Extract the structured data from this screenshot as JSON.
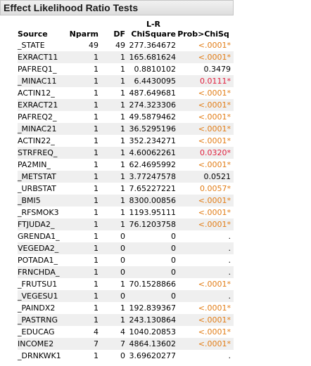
{
  "title": "Effect Likelihood Ratio Tests",
  "columns": {
    "source": "Source",
    "nparm": "Nparm",
    "df": "DF",
    "chisq_top": "L-R",
    "chisq_bottom": "ChiSquare",
    "prob": "Prob>ChiSq"
  },
  "rows": [
    {
      "source": "_STATE",
      "nparm": "49",
      "df": "49",
      "chisq": "277.364672",
      "prob": "<.0001*",
      "sig": "orange"
    },
    {
      "source": "EXRACT11",
      "nparm": "1",
      "df": "1",
      "chisq": "165.681624",
      "prob": "<.0001*",
      "sig": "orange"
    },
    {
      "source": "PAFREQ1_",
      "nparm": "1",
      "df": "1",
      "chisq": "0.8810102",
      "prob": "0.3479",
      "sig": "none"
    },
    {
      "source": "_MINAC11",
      "nparm": "1",
      "df": "1",
      "chisq": "6.4430095",
      "prob": "0.0111*",
      "sig": "red"
    },
    {
      "source": "ACTIN12_",
      "nparm": "1",
      "df": "1",
      "chisq": "487.649681",
      "prob": "<.0001*",
      "sig": "orange"
    },
    {
      "source": "EXRACT21",
      "nparm": "1",
      "df": "1",
      "chisq": "274.323306",
      "prob": "<.0001*",
      "sig": "orange"
    },
    {
      "source": "PAFREQ2_",
      "nparm": "1",
      "df": "1",
      "chisq": "49.5879462",
      "prob": "<.0001*",
      "sig": "orange"
    },
    {
      "source": "_MINAC21",
      "nparm": "1",
      "df": "1",
      "chisq": "36.5295196",
      "prob": "<.0001*",
      "sig": "orange"
    },
    {
      "source": "ACTIN22_",
      "nparm": "1",
      "df": "1",
      "chisq": "352.234271",
      "prob": "<.0001*",
      "sig": "orange"
    },
    {
      "source": "STRFREQ_",
      "nparm": "1",
      "df": "1",
      "chisq": "4.60062261",
      "prob": "0.0320*",
      "sig": "red"
    },
    {
      "source": "PA2MIN_",
      "nparm": "1",
      "df": "1",
      "chisq": "62.4695992",
      "prob": "<.0001*",
      "sig": "orange"
    },
    {
      "source": "_METSTAT",
      "nparm": "1",
      "df": "1",
      "chisq": "3.77247578",
      "prob": "0.0521",
      "sig": "none"
    },
    {
      "source": "_URBSTAT",
      "nparm": "1",
      "df": "1",
      "chisq": "7.65227221",
      "prob": "0.0057*",
      "sig": "orange"
    },
    {
      "source": "_BMI5",
      "nparm": "1",
      "df": "1",
      "chisq": "8300.00856",
      "prob": "<.0001*",
      "sig": "orange"
    },
    {
      "source": "_RFSMOK3",
      "nparm": "1",
      "df": "1",
      "chisq": "1193.95111",
      "prob": "<.0001*",
      "sig": "orange"
    },
    {
      "source": "FTJUDA2_",
      "nparm": "1",
      "df": "1",
      "chisq": "76.1203758",
      "prob": "<.0001*",
      "sig": "orange"
    },
    {
      "source": "GRENDA1_",
      "nparm": "1",
      "df": "0",
      "chisq": "0",
      "prob": ".",
      "sig": "none"
    },
    {
      "source": "VEGEDA2_",
      "nparm": "1",
      "df": "0",
      "chisq": "0",
      "prob": ".",
      "sig": "none"
    },
    {
      "source": "POTADA1_",
      "nparm": "1",
      "df": "0",
      "chisq": "0",
      "prob": ".",
      "sig": "none"
    },
    {
      "source": "FRNCHDA_",
      "nparm": "1",
      "df": "0",
      "chisq": "0",
      "prob": ".",
      "sig": "none"
    },
    {
      "source": "_FRUTSU1",
      "nparm": "1",
      "df": "1",
      "chisq": "70.1528866",
      "prob": "<.0001*",
      "sig": "orange"
    },
    {
      "source": "_VEGESU1",
      "nparm": "1",
      "df": "0",
      "chisq": "0",
      "prob": ".",
      "sig": "none"
    },
    {
      "source": "_PAINDX2",
      "nparm": "1",
      "df": "1",
      "chisq": "192.839367",
      "prob": "<.0001*",
      "sig": "orange"
    },
    {
      "source": "_PASTRNG",
      "nparm": "1",
      "df": "1",
      "chisq": "243.130864",
      "prob": "<.0001*",
      "sig": "orange"
    },
    {
      "source": "_EDUCAG",
      "nparm": "4",
      "df": "4",
      "chisq": "1040.20853",
      "prob": "<.0001*",
      "sig": "orange"
    },
    {
      "source": "INCOME2",
      "nparm": "7",
      "df": "7",
      "chisq": "4864.13602",
      "prob": "<.0001*",
      "sig": "orange"
    },
    {
      "source": "_DRNKWK1",
      "nparm": "1",
      "df": "0",
      "chisq": "3.69620277",
      "prob": ".",
      "sig": "none"
    }
  ],
  "colors": {
    "orange": "#e27d16",
    "red": "#e01f3d"
  }
}
